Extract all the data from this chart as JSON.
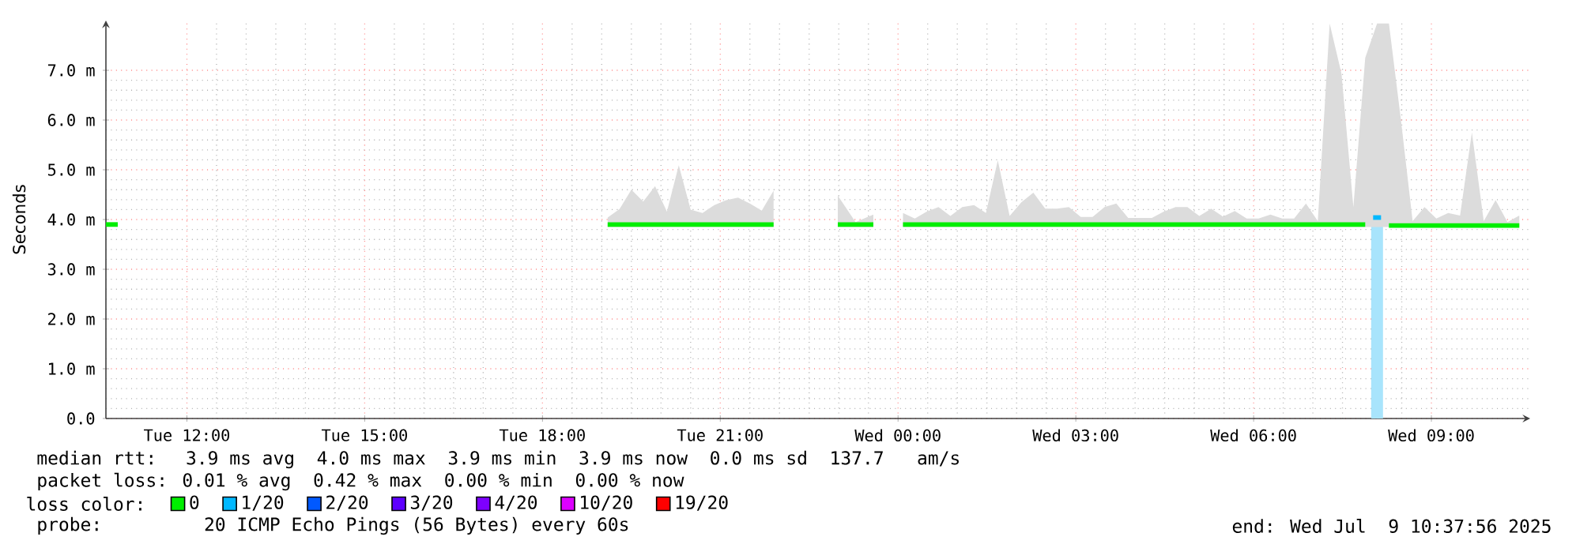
{
  "chart_data": {
    "type": "line",
    "ylabel": "Seconds",
    "legend_title": "loss color:",
    "legend": "bottom",
    "grid": true,
    "xlim": [
      "2025-07-08T10:38",
      "2025-07-09T10:40"
    ],
    "xticks": [
      {
        "value": "2025-07-08T12:00",
        "label": "Tue 12:00"
      },
      {
        "value": "2025-07-08T15:00",
        "label": "Tue 15:00"
      },
      {
        "value": "2025-07-08T18:00",
        "label": "Tue 18:00"
      },
      {
        "value": "2025-07-08T21:00",
        "label": "Tue 21:00"
      },
      {
        "value": "2025-07-09T00:00",
        "label": "Wed 00:00"
      },
      {
        "value": "2025-07-09T03:00",
        "label": "Wed 03:00"
      },
      {
        "value": "2025-07-09T06:00",
        "label": "Wed 06:00"
      },
      {
        "value": "2025-07-09T09:00",
        "label": "Wed 09:00"
      }
    ],
    "ylim": [
      0,
      8
    ],
    "yticks": [
      {
        "value": 0,
        "label": "0.0"
      },
      {
        "value": 1,
        "label": "1.0 m"
      },
      {
        "value": 2,
        "label": "2.0 m"
      },
      {
        "value": 3,
        "label": "3.0 m"
      },
      {
        "value": 4,
        "label": "4.0 m"
      },
      {
        "value": 5,
        "label": "5.0 m"
      },
      {
        "value": 6,
        "label": "6.0 m"
      },
      {
        "value": 7,
        "label": "7.0 m"
      }
    ],
    "annotations": [
      "median rtt:  3.9 ms avg  4.0 ms max  3.9 ms min  3.9 ms now  0.0 ms sd  137.7   am/s",
      "packet loss: 0.01 % avg  0.42 % max  0.00 % min  0.00 % now",
      "probe:       20 ICMP Echo Pings (56 Bytes) every 60s",
      "end: Wed Jul  9 10:37:56 2025"
    ],
    "series": [
      {
        "type": "bar",
        "color": "#a8e4fc",
        "x": [
          "2025-07-09T08:05"
        ],
        "values": [
          3.9
        ]
      },
      {
        "name": "0",
        "color": "#00ee00",
        "x": [
          "2025-07-08T10:38",
          "2025-07-08T10:50",
          "2025-07-08T15:00",
          "2025-07-08T19:06",
          "2025-07-08T19:18",
          "2025-07-08T19:30",
          "2025-07-08T19:42",
          "2025-07-08T19:54",
          "2025-07-08T20:06",
          "2025-07-08T20:18",
          "2025-07-08T20:30",
          "2025-07-08T20:42",
          "2025-07-08T20:54",
          "2025-07-08T21:06",
          "2025-07-08T21:18",
          "2025-07-08T21:30",
          "2025-07-08T21:42",
          "2025-07-08T21:54",
          "2025-07-08T22:30",
          "2025-07-08T22:59",
          "2025-07-08T23:17",
          "2025-07-08T23:35",
          "2025-07-08T23:45",
          "2025-07-09T00:05",
          "2025-07-09T00:17",
          "2025-07-09T00:29",
          "2025-07-09T00:41",
          "2025-07-09T00:53",
          "2025-07-09T01:05",
          "2025-07-09T01:17",
          "2025-07-09T01:29",
          "2025-07-09T01:41",
          "2025-07-09T01:53",
          "2025-07-09T02:05",
          "2025-07-09T02:17",
          "2025-07-09T02:29",
          "2025-07-09T02:41",
          "2025-07-09T02:53",
          "2025-07-09T03:05",
          "2025-07-09T03:17",
          "2025-07-09T03:29",
          "2025-07-09T03:41",
          "2025-07-09T03:53",
          "2025-07-09T04:05",
          "2025-07-09T04:17",
          "2025-07-09T04:29",
          "2025-07-09T04:41",
          "2025-07-09T04:53",
          "2025-07-09T05:05",
          "2025-07-09T05:17",
          "2025-07-09T05:29",
          "2025-07-09T05:41",
          "2025-07-09T05:53",
          "2025-07-09T06:05",
          "2025-07-09T06:17",
          "2025-07-09T06:29",
          "2025-07-09T06:41",
          "2025-07-09T06:53",
          "2025-07-09T07:05",
          "2025-07-09T07:17",
          "2025-07-09T07:29",
          "2025-07-09T07:41",
          "2025-07-09T07:53",
          "2025-07-09T08:05",
          "2025-07-09T08:17",
          "2025-07-09T08:29",
          "2025-07-09T08:41",
          "2025-07-09T08:53",
          "2025-07-09T09:05",
          "2025-07-09T09:17",
          "2025-07-09T09:29",
          "2025-07-09T09:41",
          "2025-07-09T09:53",
          "2025-07-09T10:05",
          "2025-07-09T10:17",
          "2025-07-09T10:29"
        ],
        "values": [
          3.9,
          3.9,
          null,
          3.9,
          3.9,
          3.9,
          3.9,
          3.9,
          3.9,
          3.9,
          3.9,
          3.9,
          3.9,
          3.9,
          3.9,
          3.9,
          3.9,
          3.9,
          null,
          3.9,
          3.9,
          3.9,
          null,
          3.9,
          3.9,
          3.9,
          3.9,
          3.9,
          3.9,
          3.9,
          3.9,
          3.9,
          3.9,
          3.9,
          3.9,
          3.9,
          3.9,
          3.9,
          3.9,
          3.9,
          3.9,
          3.9,
          3.9,
          3.9,
          3.9,
          3.9,
          3.9,
          3.9,
          3.9,
          3.9,
          3.9,
          3.9,
          3.9,
          3.9,
          3.9,
          3.9,
          3.9,
          3.9,
          3.9,
          3.9,
          3.9,
          3.9,
          3.9,
          null,
          3.88,
          3.88,
          3.88,
          3.88,
          3.88,
          3.88,
          3.88,
          3.88,
          3.88,
          3.88,
          3.88,
          3.88
        ],
        "upper": [
          null,
          null,
          null,
          4.04,
          4.21,
          4.6,
          4.36,
          4.67,
          4.16,
          5.09,
          4.2,
          4.13,
          4.29,
          4.39,
          4.44,
          4.32,
          4.18,
          4.58,
          null,
          4.48,
          3.95,
          4.1,
          null,
          4.13,
          4.02,
          4.16,
          4.25,
          4.07,
          4.25,
          4.29,
          4.13,
          5.19,
          4.07,
          4.35,
          4.54,
          4.22,
          4.22,
          4.25,
          4.05,
          4.05,
          4.25,
          4.32,
          4.03,
          4.03,
          4.03,
          4.16,
          4.25,
          4.25,
          4.07,
          4.22,
          4.06,
          4.17,
          4.02,
          4.02,
          4.1,
          4.02,
          4.02,
          4.32,
          3.97,
          7.94,
          6.93,
          4.25,
          7.25,
          7.94,
          7.94,
          6.03,
          3.97,
          4.25,
          4.02,
          4.13,
          4.08,
          5.75,
          3.97,
          4.39,
          3.95,
          4.08
        ],
        "lower": [
          null,
          null,
          null,
          3.85,
          3.85,
          3.85,
          3.85,
          3.85,
          3.85,
          3.85,
          3.85,
          3.85,
          3.85,
          3.85,
          3.85,
          3.85,
          3.85,
          3.85,
          null,
          3.85,
          3.85,
          3.85,
          null,
          3.85,
          3.85,
          3.85,
          3.85,
          3.85,
          3.85,
          3.85,
          3.85,
          3.85,
          3.85,
          3.85,
          3.85,
          3.85,
          3.85,
          3.85,
          3.85,
          3.85,
          3.85,
          3.85,
          3.85,
          3.85,
          3.85,
          3.85,
          3.85,
          3.85,
          3.85,
          3.85,
          3.85,
          3.85,
          3.85,
          3.85,
          3.85,
          3.85,
          3.85,
          3.85,
          3.85,
          3.85,
          3.85,
          3.85,
          3.85,
          3.85,
          3.85,
          3.85,
          3.85,
          3.85,
          3.85,
          3.85,
          3.85,
          3.85,
          3.85,
          3.85,
          3.85,
          3.85
        ]
      },
      {
        "name": "1/20",
        "color": "#00b8ff",
        "x": [
          "2025-07-09T08:01",
          "2025-07-09T08:09"
        ],
        "values": [
          4.04,
          4.04
        ]
      },
      {
        "name": "2/20",
        "color": "#0059ff"
      },
      {
        "name": "3/20",
        "color": "#5e00ff"
      },
      {
        "name": "4/20",
        "color": "#7e00ff"
      },
      {
        "name": "10/20",
        "color": "#dd00ff"
      },
      {
        "name": "19/20",
        "color": "#ff0000"
      }
    ]
  }
}
